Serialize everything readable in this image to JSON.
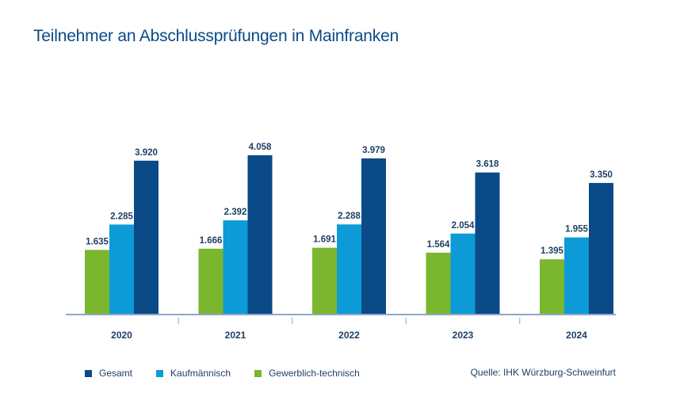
{
  "chart_data": {
    "type": "bar",
    "title": "Teilnehmer an Abschlussprüfungen in Mainfranken",
    "categories": [
      "2020",
      "2021",
      "2022",
      "2023",
      "2024"
    ],
    "series": [
      {
        "name": "Gewerblich-technisch",
        "color": "#7ab62e",
        "values": [
          1635,
          1666,
          1691,
          1564,
          1395
        ],
        "labels": [
          "1.635",
          "1.666",
          "1.691",
          "1.564",
          "1.395"
        ]
      },
      {
        "name": "Kaufmännisch",
        "color": "#0c9bd7",
        "values": [
          2285,
          2392,
          2288,
          2054,
          1955
        ],
        "labels": [
          "2.285",
          "2.392",
          "2.288",
          "2.054",
          "1.955"
        ]
      },
      {
        "name": "Gesamt",
        "color": "#0a4a87",
        "values": [
          3920,
          4058,
          3979,
          3618,
          3350
        ],
        "labels": [
          "3.920",
          "4.058",
          "3.979",
          "3.618",
          "3.350"
        ]
      }
    ],
    "ylim": [
      0,
      4058
    ],
    "grid": false,
    "legend_placement": "bottom-left"
  },
  "legend": [
    {
      "label": "Gesamt",
      "color": "#0a4a87"
    },
    {
      "label": "Kaufmännisch",
      "color": "#0c9bd7"
    },
    {
      "label": "Gewerblich-technisch",
      "color": "#7ab62e"
    }
  ],
  "source": "Quelle: IHK Würzburg-Schweinfurt",
  "colors": {
    "title": "#0a4a87",
    "label_text": "#1f3f66",
    "axis": "#8fa6c8"
  }
}
